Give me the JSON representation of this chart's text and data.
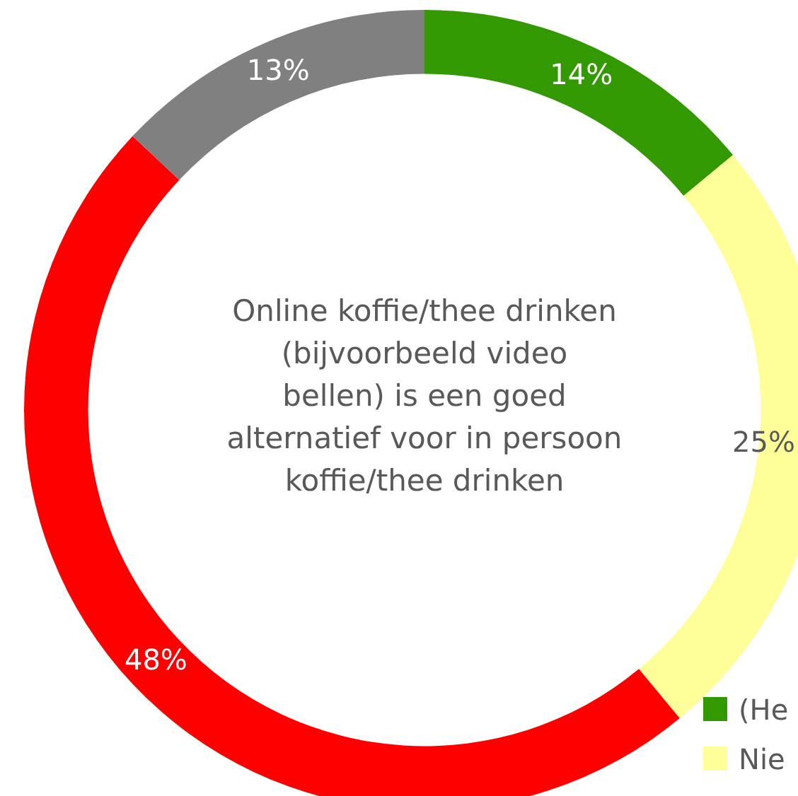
{
  "chart_data": {
    "type": "donut",
    "title": "Online koffie/thee drinken (bijvoorbeeld video bellen) is een goed alternatief voor in persoon koffie/thee drinken",
    "categories": [
      "(He",
      "Nie",
      null,
      null
    ],
    "values": [
      14,
      25,
      48,
      13
    ],
    "colors": [
      "#339900",
      "#ffff99",
      "#ff0000",
      "#808080"
    ],
    "value_labels": [
      "14%",
      "25%",
      "48%",
      "13%"
    ],
    "legend": "bottom right"
  }
}
